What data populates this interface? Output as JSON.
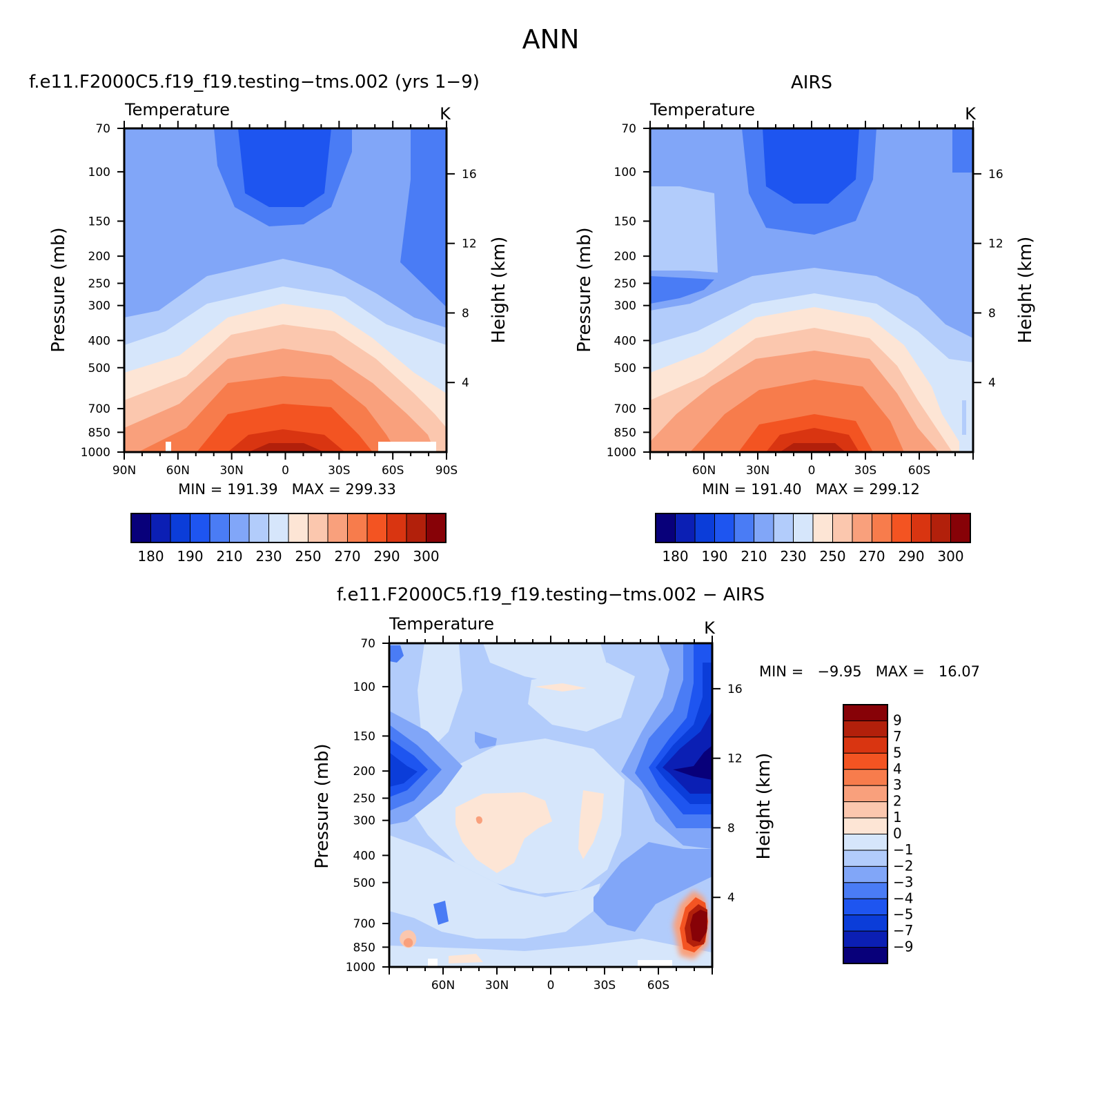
{
  "figure_title": "ANN",
  "colors": {
    "abs_palette": [
      "#08007a",
      "#0b1fb4",
      "#0b3dd9",
      "#1e55f0",
      "#4a7cf5",
      "#81a6f8",
      "#b2ccfb",
      "#d6e6fb",
      "#fde5d5",
      "#fbc7ae",
      "#f9a07c",
      "#f77c4c",
      "#f35422",
      "#d93511",
      "#b2200b",
      "#870207"
    ],
    "diff_palette": [
      "#08007a",
      "#0b1fb4",
      "#0b3dd9",
      "#1e55f0",
      "#4a7cf5",
      "#81a6f8",
      "#b2ccfb",
      "#d6e6fb",
      "#fde5d5",
      "#fbc7ae",
      "#f9a07c",
      "#f77c4c",
      "#f35422",
      "#d93511",
      "#b2200b",
      "#870207"
    ]
  },
  "chart_data": [
    {
      "type": "heatmap",
      "id": "model",
      "title": "f.e11.F2000C5.f19_f19.testing−tms.002 (yrs 1−9)",
      "variable": "Temperature",
      "units": "K",
      "ylabel": "Pressure (mb)",
      "right_ylabel": "Height (km)",
      "xlim": [
        90,
        -90
      ],
      "x_ticks": [
        90,
        60,
        30,
        0,
        -30,
        -60,
        -90
      ],
      "x_tick_labels": [
        "90N",
        "60N",
        "30N",
        "0",
        "30S",
        "60S",
        "90S"
      ],
      "y_ticks": [
        70,
        100,
        150,
        200,
        250,
        300,
        400,
        500,
        700,
        850,
        1000
      ],
      "y_tick_labels": [
        "70",
        "100",
        "150",
        "200",
        "250",
        "300",
        "400",
        "500",
        "700",
        "850",
        "1000"
      ],
      "right_ticks": [
        16,
        12,
        8,
        4
      ],
      "right_tick_labels": [
        "16",
        "12",
        "8",
        "4"
      ],
      "min": 191.39,
      "max": 299.33,
      "stats_text": "MIN = 191.39   MAX = 299.33",
      "colorbar_labels": [
        "180",
        "190",
        "210",
        "230",
        "250",
        "270",
        "290",
        "300"
      ],
      "grid": false
    },
    {
      "type": "heatmap",
      "id": "obs",
      "title": "AIRS",
      "variable": "Temperature",
      "units": "K",
      "ylabel": "Pressure (mb)",
      "right_ylabel": "Height (km)",
      "xlim": [
        90,
        -90
      ],
      "x_ticks": [
        60,
        30,
        0,
        -30,
        -60
      ],
      "x_tick_labels": [
        "60N",
        "30N",
        "0",
        "30S",
        "60S"
      ],
      "y_ticks": [
        70,
        100,
        150,
        200,
        250,
        300,
        400,
        500,
        700,
        850,
        1000
      ],
      "y_tick_labels": [
        "70",
        "100",
        "150",
        "200",
        "250",
        "300",
        "400",
        "500",
        "700",
        "850",
        "1000"
      ],
      "right_ticks": [
        16,
        12,
        8,
        4
      ],
      "right_tick_labels": [
        "16",
        "12",
        "8",
        "4"
      ],
      "min": 191.4,
      "max": 299.12,
      "stats_text": "MIN = 191.40   MAX = 299.12",
      "colorbar_labels": [
        "180",
        "190",
        "210",
        "230",
        "250",
        "270",
        "290",
        "300"
      ],
      "grid": false
    },
    {
      "type": "heatmap",
      "id": "diff",
      "title": "f.e11.F2000C5.f19_f19.testing−tms.002 − AIRS",
      "variable": "Temperature",
      "units": "K",
      "ylabel": "Pressure (mb)",
      "right_ylabel": "Height (km)",
      "xlim": [
        90,
        -90
      ],
      "x_ticks": [
        60,
        30,
        0,
        -30,
        -60
      ],
      "x_tick_labels": [
        "60N",
        "30N",
        "0",
        "30S",
        "60S"
      ],
      "y_ticks": [
        70,
        100,
        150,
        200,
        250,
        300,
        400,
        500,
        700,
        850,
        1000
      ],
      "y_tick_labels": [
        "70",
        "100",
        "150",
        "200",
        "250",
        "300",
        "400",
        "500",
        "700",
        "850",
        "1000"
      ],
      "right_ticks": [
        16,
        12,
        8,
        4
      ],
      "right_tick_labels": [
        "16",
        "12",
        "8",
        "4"
      ],
      "min": -9.95,
      "max": 16.07,
      "stats_text": "MIN =   −9.95   MAX =   16.07",
      "colorbar_labels": [
        "9",
        "7",
        "5",
        "4",
        "3",
        "2",
        "1",
        "0",
        "−1",
        "−2",
        "−3",
        "−4",
        "−5",
        "−7",
        "−9"
      ],
      "grid": false
    }
  ]
}
